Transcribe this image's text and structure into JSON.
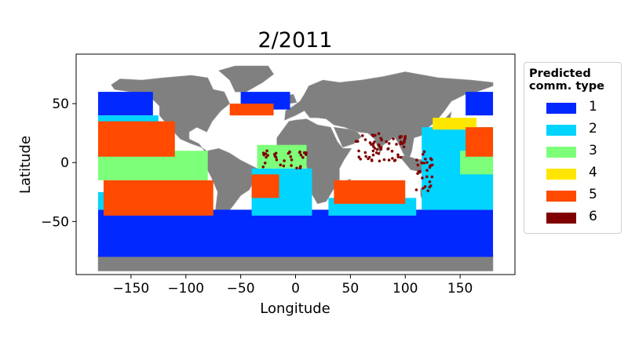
{
  "chart_data": {
    "type": "scatter",
    "title": "2/2011",
    "xlabel": "Longitude",
    "ylabel": "Latitude",
    "xlim": [
      -200,
      200
    ],
    "ylim": [
      -95,
      92
    ],
    "xticks": [
      -150,
      -100,
      -50,
      0,
      50,
      100,
      150
    ],
    "yticks": [
      -50,
      0,
      50
    ],
    "xtick_labels": [
      "−150",
      "−100",
      "−50",
      "0",
      "50",
      "100",
      "150"
    ],
    "ytick_labels": [
      "−50",
      "0",
      "50"
    ],
    "grid": false,
    "land_color": "#808080",
    "legend": {
      "title": "Predicted\ncomm. type",
      "placement": "right, outside plot",
      "entries": [
        {
          "label": "1",
          "color": "#0028ff"
        },
        {
          "label": "2",
          "color": "#00d4ff"
        },
        {
          "label": "3",
          "color": "#7dff7a"
        },
        {
          "label": "4",
          "color": "#ffe600"
        },
        {
          "label": "5",
          "color": "#ff4a00"
        },
        {
          "label": "6",
          "color": "#800000"
        }
      ]
    },
    "regions": [
      {
        "class": "1",
        "lon": [
          -180,
          180
        ],
        "lat": [
          -80,
          -40
        ]
      },
      {
        "class": "1",
        "lon": [
          -180,
          -130
        ],
        "lat": [
          40,
          60
        ]
      },
      {
        "class": "1",
        "lon": [
          155,
          180
        ],
        "lat": [
          40,
          60
        ]
      },
      {
        "class": "1",
        "lon": [
          -50,
          -5
        ],
        "lat": [
          45,
          60
        ]
      },
      {
        "class": "2",
        "lon": [
          -180,
          -125
        ],
        "lat": [
          30,
          40
        ]
      },
      {
        "class": "2",
        "lon": [
          -180,
          -90
        ],
        "lat": [
          -40,
          -25
        ]
      },
      {
        "class": "2",
        "lon": [
          -40,
          15
        ],
        "lat": [
          -45,
          -5
        ]
      },
      {
        "class": "2",
        "lon": [
          30,
          110
        ],
        "lat": [
          -45,
          -30
        ]
      },
      {
        "class": "2",
        "lon": [
          115,
          180
        ],
        "lat": [
          -40,
          30
        ]
      },
      {
        "class": "3",
        "lon": [
          -180,
          -80
        ],
        "lat": [
          -15,
          10
        ]
      },
      {
        "class": "3",
        "lon": [
          -35,
          10
        ],
        "lat": [
          -5,
          15
        ]
      },
      {
        "class": "3",
        "lon": [
          150,
          180
        ],
        "lat": [
          -10,
          10
        ]
      },
      {
        "class": "4",
        "lon": [
          125,
          165
        ],
        "lat": [
          28,
          38
        ]
      },
      {
        "class": "5",
        "lon": [
          -180,
          -110
        ],
        "lat": [
          5,
          35
        ]
      },
      {
        "class": "5",
        "lon": [
          -175,
          -75
        ],
        "lat": [
          -45,
          -15
        ]
      },
      {
        "class": "5",
        "lon": [
          -40,
          -15
        ],
        "lat": [
          -30,
          -10
        ]
      },
      {
        "class": "5",
        "lon": [
          -60,
          -20
        ],
        "lat": [
          40,
          50
        ]
      },
      {
        "class": "5",
        "lon": [
          35,
          100
        ],
        "lat": [
          -35,
          -15
        ]
      },
      {
        "class": "5",
        "lon": [
          155,
          180
        ],
        "lat": [
          5,
          30
        ]
      },
      {
        "class": "6",
        "lon": [
          55,
          100
        ],
        "lat": [
          0,
          25
        ]
      },
      {
        "class": "6",
        "lon": [
          -30,
          10
        ],
        "lat": [
          -5,
          10
        ]
      },
      {
        "class": "6",
        "lon": [
          110,
          125
        ],
        "lat": [
          -25,
          10
        ]
      }
    ]
  }
}
